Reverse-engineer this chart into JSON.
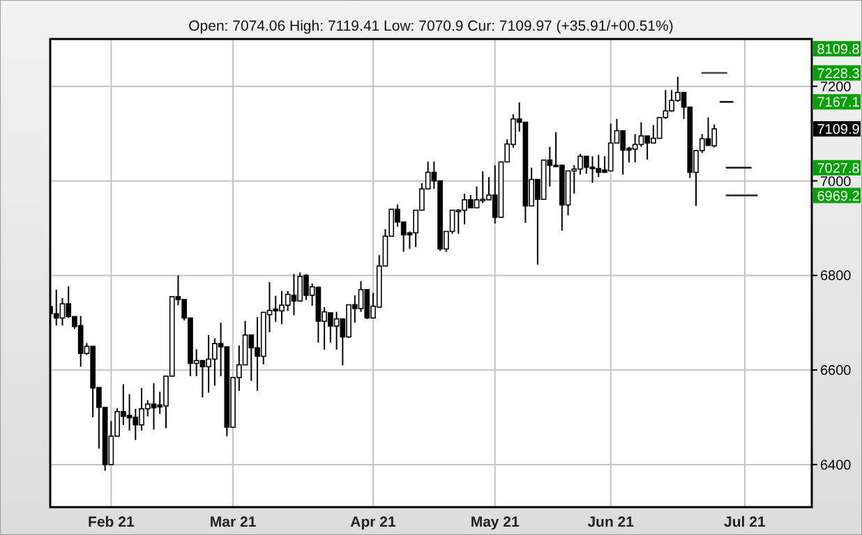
{
  "chart_data": {
    "type": "candlestick",
    "subtitle": "Open: 7074.06 High: 7119.41 Low: 7070.9 Cur: 7109.97 (+35.91/+00.51%)",
    "categories": [
      null,
      null,
      null,
      null,
      null,
      null,
      null,
      null,
      null,
      null,
      "Feb 21",
      null,
      null,
      null,
      null,
      null,
      null,
      null,
      null,
      null,
      null,
      null,
      null,
      null,
      null,
      null,
      null,
      null,
      null,
      null,
      "Mar 21",
      null,
      null,
      null,
      null,
      null,
      null,
      null,
      null,
      null,
      null,
      null,
      null,
      null,
      null,
      null,
      null,
      null,
      null,
      null,
      null,
      null,
      null,
      "Apr 21",
      null,
      null,
      null,
      null,
      null,
      null,
      null,
      null,
      null,
      null,
      null,
      null,
      null,
      null,
      null,
      null,
      null,
      null,
      null,
      "May 21",
      null,
      null,
      null,
      null,
      null,
      null,
      null,
      null,
      null,
      null,
      null,
      null,
      null,
      null,
      null,
      null,
      null,
      null,
      "Jun 21",
      null,
      null,
      null,
      null,
      null,
      null,
      null,
      null,
      null,
      null,
      null,
      null,
      null,
      null,
      null,
      null,
      null,
      null,
      null,
      null,
      null,
      "Jul 21",
      null,
      null,
      null,
      null,
      null,
      null,
      null,
      null,
      null,
      null,
      null
    ],
    "ohlc": [
      [
        6734,
        6745,
        6700,
        6719
      ],
      [
        6719,
        6770,
        6694,
        6710
      ],
      [
        6710,
        6752,
        6694,
        6740
      ],
      [
        6740,
        6777,
        6710,
        6713
      ],
      [
        6713,
        6713,
        6687,
        6692
      ],
      [
        6694,
        6714,
        6607,
        6635
      ],
      [
        6635,
        6657,
        6632,
        6650
      ],
      [
        6650,
        6650,
        6500,
        6562
      ],
      [
        6563,
        6563,
        6434,
        6521
      ],
      [
        6521,
        6521,
        6387,
        6400
      ],
      [
        6400,
        6492,
        6400,
        6460
      ],
      [
        6460,
        6519,
        6460,
        6512
      ],
      [
        6512,
        6570,
        6484,
        6502
      ],
      [
        6504,
        6549,
        6472,
        6499
      ],
      [
        6500,
        6518,
        6452,
        6484
      ],
      [
        6484,
        6562,
        6472,
        6518
      ],
      [
        6518,
        6536,
        6502,
        6528
      ],
      [
        6528,
        6572,
        6474,
        6520
      ],
      [
        6526,
        6554,
        6507,
        6522
      ],
      [
        6524,
        6587,
        6477,
        6587
      ],
      [
        6587,
        6755,
        6587,
        6755
      ],
      [
        6755,
        6800,
        6737,
        6749
      ],
      [
        6749,
        6749,
        6705,
        6710
      ],
      [
        6710,
        6710,
        6587,
        6614
      ],
      [
        6614,
        6644,
        6587,
        6620
      ],
      [
        6620,
        6620,
        6542,
        6607
      ],
      [
        6607,
        6674,
        6552,
        6623
      ],
      [
        6623,
        6667,
        6567,
        6656
      ],
      [
        6656,
        6700,
        6587,
        6649
      ],
      [
        6649,
        6649,
        6460,
        6479
      ],
      [
        6479,
        6584,
        6479,
        6584
      ],
      [
        6584,
        6652,
        6556,
        6611
      ],
      [
        6611,
        6704,
        6611,
        6674
      ],
      [
        6674,
        6674,
        6577,
        6647
      ],
      [
        6647,
        6712,
        6556,
        6629
      ],
      [
        6629,
        6722,
        6612,
        6722
      ],
      [
        6717,
        6786,
        6680,
        6726
      ],
      [
        6729,
        6757,
        6702,
        6725
      ],
      [
        6725,
        6767,
        6697,
        6737
      ],
      [
        6737,
        6767,
        6725,
        6760
      ],
      [
        6758,
        6803,
        6716,
        6746
      ],
      [
        6746,
        6806,
        6746,
        6798
      ],
      [
        6800,
        6803,
        6748,
        6758
      ],
      [
        6758,
        6783,
        6736,
        6776
      ],
      [
        6775,
        6775,
        6658,
        6703
      ],
      [
        6703,
        6733,
        6643,
        6723
      ],
      [
        6721,
        6721,
        6658,
        6693
      ],
      [
        6693,
        6723,
        6643,
        6708
      ],
      [
        6708,
        6708,
        6610,
        6670
      ],
      [
        6670,
        6738,
        6668,
        6738
      ],
      [
        6738,
        6758,
        6700,
        6730
      ],
      [
        6730,
        6788,
        6723,
        6770
      ],
      [
        6770,
        6770,
        6708,
        6710
      ],
      [
        6710,
        6763,
        6710,
        6735
      ],
      [
        6733,
        6843,
        6733,
        6820
      ],
      [
        6820,
        6898,
        6820,
        6883
      ],
      [
        6883,
        6940,
        6883,
        6940
      ],
      [
        6940,
        6950,
        6903,
        6913
      ],
      [
        6913,
        6913,
        6850,
        6886
      ],
      [
        6890,
        6893,
        6856,
        6886
      ],
      [
        6890,
        6938,
        6860,
        6938
      ],
      [
        6938,
        6995,
        6938,
        6983
      ],
      [
        6983,
        7041,
        6983,
        7018
      ],
      [
        7018,
        7041,
        6983,
        7000
      ],
      [
        7000,
        7000,
        6852,
        6856
      ],
      [
        6856,
        6893,
        6850,
        6893
      ],
      [
        6893,
        6938,
        6888,
        6938
      ],
      [
        6937,
        6940,
        6888,
        6938
      ],
      [
        6938,
        6973,
        6908,
        6960
      ],
      [
        6960,
        6970,
        6943,
        6943
      ],
      [
        6943,
        6988,
        6943,
        6960
      ],
      [
        6960,
        7020,
        6953,
        6961
      ],
      [
        6960,
        7008,
        6960,
        6970
      ],
      [
        6970,
        7033,
        6910,
        6923
      ],
      [
        6923,
        7040,
        6923,
        7040
      ],
      [
        7040,
        7088,
        7040,
        7078
      ],
      [
        7077,
        7141,
        7070,
        7131
      ],
      [
        7131,
        7166,
        7104,
        7124
      ],
      [
        7124,
        7124,
        6911,
        6947
      ],
      [
        6947,
        7028,
        6947,
        7003
      ],
      [
        7003,
        7003,
        6823,
        6961
      ],
      [
        6961,
        7044,
        6961,
        7044
      ],
      [
        7044,
        7072,
        6988,
        7033
      ],
      [
        7033,
        7103,
        7030,
        7030
      ],
      [
        7033,
        7033,
        6895,
        6949
      ],
      [
        6949,
        7021,
        6927,
        7021
      ],
      [
        7021,
        7033,
        6973,
        7025
      ],
      [
        7025,
        7057,
        7013,
        7052
      ],
      [
        7052,
        7052,
        7015,
        7029
      ],
      [
        7029,
        7052,
        6996,
        7026
      ],
      [
        7026,
        7055,
        7008,
        7018
      ],
      [
        7023,
        7052,
        7018,
        7018
      ],
      [
        7021,
        7121,
        7021,
        7080
      ],
      [
        7080,
        7131,
        7080,
        7106
      ],
      [
        7106,
        7106,
        7013,
        7065
      ],
      [
        7069,
        7072,
        7039,
        7065
      ],
      [
        7067,
        7099,
        7039,
        7077
      ],
      [
        7077,
        7124,
        7072,
        7095
      ],
      [
        7095,
        7095,
        7045,
        7080
      ],
      [
        7080,
        7118,
        7080,
        7090
      ],
      [
        7090,
        7134,
        7090,
        7134
      ],
      [
        7134,
        7192,
        7131,
        7148
      ],
      [
        7148,
        7192,
        7146,
        7170
      ],
      [
        7170,
        7220,
        7167,
        7187
      ],
      [
        7187,
        7187,
        7131,
        7156
      ],
      [
        7156,
        7156,
        7006,
        7018
      ],
      [
        7018,
        7064,
        6947,
        7064
      ],
      [
        7064,
        7099,
        7059,
        7089
      ],
      [
        7089,
        7134,
        7075,
        7075
      ],
      [
        7074.06,
        7119.41,
        7070.9,
        7109.97
      ],
      null,
      null,
      null,
      null,
      null,
      null,
      null,
      null,
      null,
      null,
      null,
      null,
      null,
      null,
      null,
      null
    ],
    "ylim": [
      6310,
      7300
    ],
    "yticks": [
      6400,
      6600,
      6800,
      7000,
      7200
    ],
    "grid": true,
    "series": [
      {
        "type": "line",
        "color": "#303030",
        "values": [
          null,
          null,
          null,
          null,
          null,
          null,
          null,
          null,
          null,
          null,
          null,
          null,
          null,
          null,
          null,
          null,
          null,
          null,
          null,
          null,
          null,
          null,
          null,
          null,
          null,
          null,
          null,
          null,
          null,
          null,
          null,
          null,
          null,
          null,
          null,
          null,
          null,
          null,
          null,
          null,
          null,
          null,
          null,
          null,
          null,
          null,
          null,
          null,
          null,
          null,
          null,
          null,
          null,
          null,
          null,
          null,
          null,
          null,
          null,
          null,
          null,
          null,
          null,
          null,
          null,
          null,
          null,
          null,
          null,
          null,
          null,
          null,
          null,
          null,
          null,
          null,
          null,
          null,
          null,
          null,
          null,
          null,
          null,
          null,
          null,
          null,
          null,
          null,
          null,
          null,
          null,
          null,
          null,
          null,
          null,
          null,
          null,
          null,
          null,
          null,
          null,
          null,
          null,
          null,
          null,
          null,
          null,
          7228.3,
          7228.3,
          7228.3,
          7228.3,
          7228.3,
          null,
          null,
          null,
          null,
          null,
          null,
          null,
          null,
          null,
          null,
          null,
          null,
          null,
          null
        ]
      },
      {
        "type": "line",
        "color": "#0c0c0c",
        "values": [
          null,
          null,
          null,
          null,
          null,
          null,
          null,
          null,
          null,
          null,
          null,
          null,
          null,
          null,
          null,
          null,
          null,
          null,
          null,
          null,
          null,
          null,
          null,
          null,
          null,
          null,
          null,
          null,
          null,
          null,
          null,
          null,
          null,
          null,
          null,
          null,
          null,
          null,
          null,
          null,
          null,
          null,
          null,
          null,
          null,
          null,
          null,
          null,
          null,
          null,
          null,
          null,
          null,
          null,
          null,
          null,
          null,
          null,
          null,
          null,
          null,
          null,
          null,
          null,
          null,
          null,
          null,
          null,
          null,
          null,
          null,
          null,
          null,
          null,
          null,
          null,
          null,
          null,
          null,
          null,
          null,
          null,
          null,
          null,
          null,
          null,
          null,
          null,
          null,
          null,
          null,
          null,
          null,
          null,
          null,
          null,
          null,
          null,
          null,
          null,
          null,
          null,
          null,
          null,
          null,
          null,
          null,
          null,
          null,
          null,
          7167.1,
          7167.1,
          7167.1,
          null,
          null,
          null,
          null,
          null,
          null,
          null,
          null,
          null,
          null,
          null,
          null,
          null
        ]
      },
      {
        "type": "line",
        "color": "#181818",
        "values": [
          null,
          null,
          null,
          null,
          null,
          null,
          null,
          null,
          null,
          null,
          null,
          null,
          null,
          null,
          null,
          null,
          null,
          null,
          null,
          null,
          null,
          null,
          null,
          null,
          null,
          null,
          null,
          null,
          null,
          null,
          null,
          null,
          null,
          null,
          null,
          null,
          null,
          null,
          null,
          null,
          null,
          null,
          null,
          null,
          null,
          null,
          null,
          null,
          null,
          null,
          null,
          null,
          null,
          null,
          null,
          null,
          null,
          null,
          null,
          null,
          null,
          null,
          null,
          null,
          null,
          null,
          null,
          null,
          null,
          null,
          null,
          null,
          null,
          null,
          null,
          null,
          null,
          null,
          null,
          null,
          null,
          null,
          null,
          null,
          null,
          null,
          null,
          null,
          null,
          null,
          null,
          null,
          null,
          null,
          null,
          null,
          null,
          null,
          null,
          null,
          null,
          null,
          null,
          null,
          null,
          null,
          null,
          null,
          null,
          null,
          null,
          7027.8,
          7027.8,
          7027.8,
          7027.8,
          7027.8,
          null,
          null,
          null,
          null,
          null,
          null,
          null,
          null,
          null,
          null
        ]
      },
      {
        "type": "line",
        "color": "#242424",
        "values": [
          null,
          null,
          null,
          null,
          null,
          null,
          null,
          null,
          null,
          null,
          null,
          null,
          null,
          null,
          null,
          null,
          null,
          null,
          null,
          null,
          null,
          null,
          null,
          null,
          null,
          null,
          null,
          null,
          null,
          null,
          null,
          null,
          null,
          null,
          null,
          null,
          null,
          null,
          null,
          null,
          null,
          null,
          null,
          null,
          null,
          null,
          null,
          null,
          null,
          null,
          null,
          null,
          null,
          null,
          null,
          null,
          null,
          null,
          null,
          null,
          null,
          null,
          null,
          null,
          null,
          null,
          null,
          null,
          null,
          null,
          null,
          null,
          null,
          null,
          null,
          null,
          null,
          null,
          null,
          null,
          null,
          null,
          null,
          null,
          null,
          null,
          null,
          null,
          null,
          null,
          null,
          null,
          null,
          null,
          null,
          null,
          null,
          null,
          null,
          null,
          null,
          null,
          null,
          null,
          null,
          null,
          null,
          null,
          null,
          null,
          null,
          6969.2,
          6969.2,
          6969.2,
          6969.2,
          6969.2,
          6969.2,
          null,
          null,
          null,
          null,
          null,
          null,
          null,
          null,
          null
        ]
      }
    ],
    "annotations": [
      "8109.8",
      {
        "text": "7228.3",
        "y": 7228.3
      },
      {
        "text": "7167.1",
        "y": 7167.1
      },
      {
        "text": "7109.9",
        "y": 7109.97
      },
      {
        "text": "7027.8",
        "y": 7027.8
      },
      {
        "text": "6969.2",
        "y": 6969.2
      }
    ]
  }
}
